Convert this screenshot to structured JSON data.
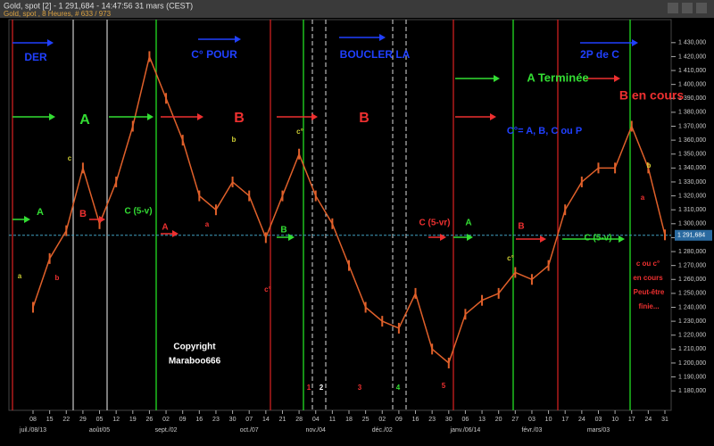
{
  "header": {
    "title": "Gold, spot [2] - 1 291,684 - 14:47:56  31 mars (CEST)",
    "subtitle": "Gold, spot , 8 Heures, # 633 / 973"
  },
  "chart_data": {
    "type": "line",
    "color": "#e0602a",
    "categories": [
      "08",
      "15",
      "22",
      "29",
      "05",
      "12",
      "19",
      "26",
      "02",
      "09",
      "16",
      "23",
      "30",
      "07",
      "14",
      "21",
      "28",
      "04",
      "11",
      "18",
      "25",
      "02",
      "09",
      "16",
      "23",
      "30",
      "06",
      "13",
      "20",
      "27",
      "03",
      "10",
      "17",
      "24",
      "03",
      "10",
      "17",
      "24",
      "31"
    ],
    "values": [
      1240,
      1275,
      1295,
      1340,
      1300,
      1330,
      1370,
      1420,
      1390,
      1360,
      1320,
      1310,
      1330,
      1320,
      1290,
      1320,
      1350,
      1320,
      1300,
      1270,
      1240,
      1230,
      1225,
      1250,
      1210,
      1200,
      1235,
      1245,
      1250,
      1265,
      1260,
      1270,
      1310,
      1330,
      1340,
      1340,
      1370,
      1340,
      1292
    ],
    "month_labels": [
      "juil./08/13",
      "août/05",
      "sept./02",
      "oct./07",
      "nov./04",
      "déc./02",
      "janv./06/14",
      "févr./03",
      "mars/03"
    ],
    "ylim": [
      1175,
      1435
    ],
    "yticks": [
      {
        "value": 1180,
        "label": "1 180,000"
      },
      {
        "value": 1190,
        "label": "1 190,000"
      },
      {
        "value": 1200,
        "label": "1 200,000"
      },
      {
        "value": 1210,
        "label": "1 210,000"
      },
      {
        "value": 1220,
        "label": "1 220,000"
      },
      {
        "value": 1230,
        "label": "1 230,000"
      },
      {
        "value": 1240,
        "label": "1 240,000"
      },
      {
        "value": 1250,
        "label": "1 250,000"
      },
      {
        "value": 1260,
        "label": "1 260,000"
      },
      {
        "value": 1270,
        "label": "1 270,000"
      },
      {
        "value": 1280,
        "label": "1 280,000"
      },
      {
        "value": 1290,
        "label": "1 290,000"
      },
      {
        "value": 1300,
        "label": "1 300,000"
      },
      {
        "value": 1310,
        "label": "1 310,000"
      },
      {
        "value": 1320,
        "label": "1 320,000"
      },
      {
        "value": 1330,
        "label": "1 330,000"
      },
      {
        "value": 1340,
        "label": "1 340,000"
      },
      {
        "value": 1350,
        "label": "1 350,000"
      },
      {
        "value": 1360,
        "label": "1 360,000"
      },
      {
        "value": 1370,
        "label": "1 370,000"
      },
      {
        "value": 1380,
        "label": "1 380,000"
      },
      {
        "value": 1390,
        "label": "1 390,000"
      },
      {
        "value": 1400,
        "label": "1 400,000"
      },
      {
        "value": 1410,
        "label": "1 410,000"
      },
      {
        "value": 1420,
        "label": "1 420,000"
      },
      {
        "value": 1430,
        "label": "1 430,000"
      }
    ],
    "last_price": {
      "value": 1291.684,
      "label": "1 291,684"
    },
    "annotations": [
      {
        "text": "DER",
        "color": "#2040ff"
      },
      {
        "text": "C° POUR",
        "color": "#2040ff"
      },
      {
        "text": "BOUCLER LA",
        "color": "#2040ff"
      },
      {
        "text": "2P de C",
        "color": "#2040ff"
      },
      {
        "text": "A",
        "color": "#33dd33"
      },
      {
        "text": "B",
        "color": "#ee3030"
      },
      {
        "text": "B",
        "color": "#ee3030"
      },
      {
        "text": "A Terminée",
        "color": "#33dd33"
      },
      {
        "text": "B en cours",
        "color": "#ee3030"
      },
      {
        "text": "C°= A, B, C ou P",
        "color": "#2040ff"
      },
      {
        "text": "A",
        "color": "#33dd33"
      },
      {
        "text": "B",
        "color": "#ee3030"
      },
      {
        "text": "C (5-v)",
        "color": "#33dd33"
      },
      {
        "text": "A",
        "color": "#ee3030"
      },
      {
        "text": "B",
        "color": "#33dd33"
      },
      {
        "text": "C (5-vr)",
        "color": "#ee3030"
      },
      {
        "text": "A",
        "color": "#33dd33"
      },
      {
        "text": "B",
        "color": "#ee3030"
      },
      {
        "text": "C (5-v)",
        "color": "#33dd33"
      },
      {
        "text": "Copyright",
        "color": "#ffffff"
      },
      {
        "text": "Maraboo666",
        "color": "#ffffff"
      },
      {
        "text": "c ou c°",
        "color": "#ee3030"
      },
      {
        "text": "en cours",
        "color": "#ee3030"
      },
      {
        "text": "Peut-être",
        "color": "#ee3030"
      },
      {
        "text": "finie...",
        "color": "#ee3030"
      },
      {
        "text": "1",
        "color": "#ee3030"
      },
      {
        "text": "2",
        "color": "#ffffff"
      },
      {
        "text": "3",
        "color": "#ee3030"
      },
      {
        "text": "4",
        "color": "#33dd33"
      },
      {
        "text": "5",
        "color": "#ee3030"
      },
      {
        "text": "a",
        "color": "#cccc33"
      },
      {
        "text": "b",
        "color": "#ee3030"
      },
      {
        "text": "c",
        "color": "#cccc33"
      },
      {
        "text": "a",
        "color": "#ee3030"
      },
      {
        "text": "b",
        "color": "#cccc33"
      },
      {
        "text": "c°",
        "color": "#ee3030"
      },
      {
        "text": "c°",
        "color": "#cccc33"
      },
      {
        "text": "c°",
        "color": "#cccc33"
      },
      {
        "text": "b",
        "color": "#cccc33"
      },
      {
        "text": "a",
        "color": "#ee3030"
      }
    ]
  }
}
